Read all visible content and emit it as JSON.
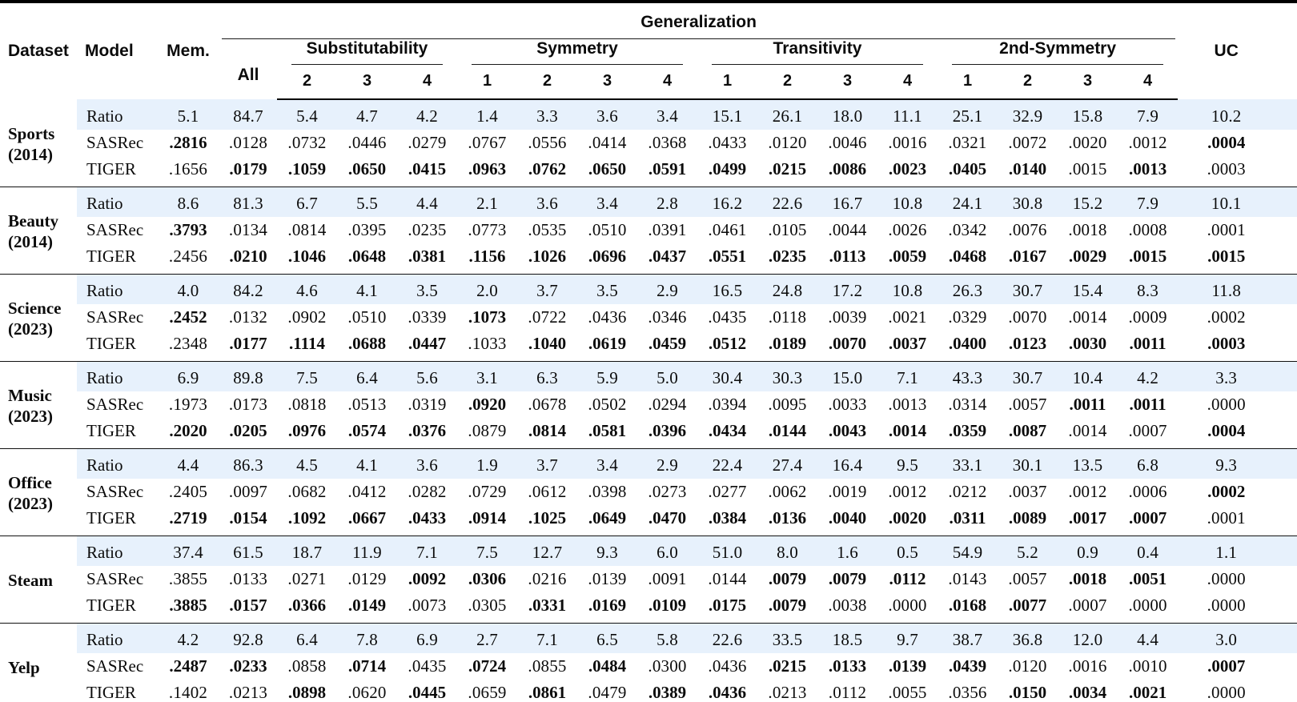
{
  "colors": {
    "highlight": "#e7f1fc",
    "rule": "#000000"
  },
  "header": {
    "dataset": "Dataset",
    "model": "Model",
    "mem": "Mem.",
    "generalization": "Generalization",
    "all": "All",
    "col_groups": [
      "Substitutability",
      "Symmetry",
      "Transitivity",
      "2nd-Symmetry"
    ],
    "subcols": [
      "2",
      "3",
      "4",
      "1",
      "2",
      "3",
      "4",
      "1",
      "2",
      "3",
      "4",
      "1",
      "2",
      "3",
      "4"
    ],
    "uc": "UC"
  },
  "groups": [
    {
      "dataset": [
        "Sports",
        "(2014)"
      ],
      "rows": [
        {
          "model": "Ratio",
          "highlight": true,
          "values": [
            "5.1",
            "84.7",
            "5.4",
            "4.7",
            "4.2",
            "1.4",
            "3.3",
            "3.6",
            "3.4",
            "15.1",
            "26.1",
            "18.0",
            "11.1",
            "25.1",
            "32.9",
            "15.8",
            "7.9",
            "10.2"
          ],
          "bold": [
            0,
            0,
            0,
            0,
            0,
            0,
            0,
            0,
            0,
            0,
            0,
            0,
            0,
            0,
            0,
            0,
            0,
            0
          ]
        },
        {
          "model": "SASRec",
          "highlight": false,
          "values": [
            ".2816",
            ".0128",
            ".0732",
            ".0446",
            ".0279",
            ".0767",
            ".0556",
            ".0414",
            ".0368",
            ".0433",
            ".0120",
            ".0046",
            ".0016",
            ".0321",
            ".0072",
            ".0020",
            ".0012",
            ".0004"
          ],
          "bold": [
            1,
            0,
            0,
            0,
            0,
            0,
            0,
            0,
            0,
            0,
            0,
            0,
            0,
            0,
            0,
            0,
            0,
            1
          ]
        },
        {
          "model": "TIGER",
          "highlight": false,
          "values": [
            ".1656",
            ".0179",
            ".1059",
            ".0650",
            ".0415",
            ".0963",
            ".0762",
            ".0650",
            ".0591",
            ".0499",
            ".0215",
            ".0086",
            ".0023",
            ".0405",
            ".0140",
            ".0015",
            ".0013",
            ".0003"
          ],
          "bold": [
            0,
            1,
            1,
            1,
            1,
            1,
            1,
            1,
            1,
            1,
            1,
            1,
            1,
            1,
            1,
            0,
            1,
            0
          ]
        }
      ]
    },
    {
      "dataset": [
        "Beauty",
        "(2014)"
      ],
      "rows": [
        {
          "model": "Ratio",
          "highlight": true,
          "values": [
            "8.6",
            "81.3",
            "6.7",
            "5.5",
            "4.4",
            "2.1",
            "3.6",
            "3.4",
            "2.8",
            "16.2",
            "22.6",
            "16.7",
            "10.8",
            "24.1",
            "30.8",
            "15.2",
            "7.9",
            "10.1"
          ],
          "bold": [
            0,
            0,
            0,
            0,
            0,
            0,
            0,
            0,
            0,
            0,
            0,
            0,
            0,
            0,
            0,
            0,
            0,
            0
          ]
        },
        {
          "model": "SASRec",
          "highlight": false,
          "values": [
            ".3793",
            ".0134",
            ".0814",
            ".0395",
            ".0235",
            ".0773",
            ".0535",
            ".0510",
            ".0391",
            ".0461",
            ".0105",
            ".0044",
            ".0026",
            ".0342",
            ".0076",
            ".0018",
            ".0008",
            ".0001"
          ],
          "bold": [
            1,
            0,
            0,
            0,
            0,
            0,
            0,
            0,
            0,
            0,
            0,
            0,
            0,
            0,
            0,
            0,
            0,
            0
          ]
        },
        {
          "model": "TIGER",
          "highlight": false,
          "values": [
            ".2456",
            ".0210",
            ".1046",
            ".0648",
            ".0381",
            ".1156",
            ".1026",
            ".0696",
            ".0437",
            ".0551",
            ".0235",
            ".0113",
            ".0059",
            ".0468",
            ".0167",
            ".0029",
            ".0015",
            ".0015"
          ],
          "bold": [
            0,
            1,
            1,
            1,
            1,
            1,
            1,
            1,
            1,
            1,
            1,
            1,
            1,
            1,
            1,
            1,
            1,
            1
          ]
        }
      ]
    },
    {
      "dataset": [
        "Science",
        "(2023)"
      ],
      "rows": [
        {
          "model": "Ratio",
          "highlight": true,
          "values": [
            "4.0",
            "84.2",
            "4.6",
            "4.1",
            "3.5",
            "2.0",
            "3.7",
            "3.5",
            "2.9",
            "16.5",
            "24.8",
            "17.2",
            "10.8",
            "26.3",
            "30.7",
            "15.4",
            "8.3",
            "11.8"
          ],
          "bold": [
            0,
            0,
            0,
            0,
            0,
            0,
            0,
            0,
            0,
            0,
            0,
            0,
            0,
            0,
            0,
            0,
            0,
            0
          ]
        },
        {
          "model": "SASRec",
          "highlight": false,
          "values": [
            ".2452",
            ".0132",
            ".0902",
            ".0510",
            ".0339",
            ".1073",
            ".0722",
            ".0436",
            ".0346",
            ".0435",
            ".0118",
            ".0039",
            ".0021",
            ".0329",
            ".0070",
            ".0014",
            ".0009",
            ".0002"
          ],
          "bold": [
            1,
            0,
            0,
            0,
            0,
            1,
            0,
            0,
            0,
            0,
            0,
            0,
            0,
            0,
            0,
            0,
            0,
            0
          ]
        },
        {
          "model": "TIGER",
          "highlight": false,
          "values": [
            ".2348",
            ".0177",
            ".1114",
            ".0688",
            ".0447",
            ".1033",
            ".1040",
            ".0619",
            ".0459",
            ".0512",
            ".0189",
            ".0070",
            ".0037",
            ".0400",
            ".0123",
            ".0030",
            ".0011",
            ".0003"
          ],
          "bold": [
            0,
            1,
            1,
            1,
            1,
            0,
            1,
            1,
            1,
            1,
            1,
            1,
            1,
            1,
            1,
            1,
            1,
            1
          ]
        }
      ]
    },
    {
      "dataset": [
        "Music",
        "(2023)"
      ],
      "rows": [
        {
          "model": "Ratio",
          "highlight": true,
          "values": [
            "6.9",
            "89.8",
            "7.5",
            "6.4",
            "5.6",
            "3.1",
            "6.3",
            "5.9",
            "5.0",
            "30.4",
            "30.3",
            "15.0",
            "7.1",
            "43.3",
            "30.7",
            "10.4",
            "4.2",
            "3.3"
          ],
          "bold": [
            0,
            0,
            0,
            0,
            0,
            0,
            0,
            0,
            0,
            0,
            0,
            0,
            0,
            0,
            0,
            0,
            0,
            0
          ]
        },
        {
          "model": "SASRec",
          "highlight": false,
          "values": [
            ".1973",
            ".0173",
            ".0818",
            ".0513",
            ".0319",
            ".0920",
            ".0678",
            ".0502",
            ".0294",
            ".0394",
            ".0095",
            ".0033",
            ".0013",
            ".0314",
            ".0057",
            ".0011",
            ".0011",
            ".0000"
          ],
          "bold": [
            0,
            0,
            0,
            0,
            0,
            1,
            0,
            0,
            0,
            0,
            0,
            0,
            0,
            0,
            0,
            1,
            1,
            0
          ]
        },
        {
          "model": "TIGER",
          "highlight": false,
          "values": [
            ".2020",
            ".0205",
            ".0976",
            ".0574",
            ".0376",
            ".0879",
            ".0814",
            ".0581",
            ".0396",
            ".0434",
            ".0144",
            ".0043",
            ".0014",
            ".0359",
            ".0087",
            ".0014",
            ".0007",
            ".0004"
          ],
          "bold": [
            1,
            1,
            1,
            1,
            1,
            0,
            1,
            1,
            1,
            1,
            1,
            1,
            1,
            1,
            1,
            0,
            0,
            1
          ]
        }
      ]
    },
    {
      "dataset": [
        "Office",
        "(2023)"
      ],
      "rows": [
        {
          "model": "Ratio",
          "highlight": true,
          "values": [
            "4.4",
            "86.3",
            "4.5",
            "4.1",
            "3.6",
            "1.9",
            "3.7",
            "3.4",
            "2.9",
            "22.4",
            "27.4",
            "16.4",
            "9.5",
            "33.1",
            "30.1",
            "13.5",
            "6.8",
            "9.3"
          ],
          "bold": [
            0,
            0,
            0,
            0,
            0,
            0,
            0,
            0,
            0,
            0,
            0,
            0,
            0,
            0,
            0,
            0,
            0,
            0
          ]
        },
        {
          "model": "SASRec",
          "highlight": false,
          "values": [
            ".2405",
            ".0097",
            ".0682",
            ".0412",
            ".0282",
            ".0729",
            ".0612",
            ".0398",
            ".0273",
            ".0277",
            ".0062",
            ".0019",
            ".0012",
            ".0212",
            ".0037",
            ".0012",
            ".0006",
            ".0002"
          ],
          "bold": [
            0,
            0,
            0,
            0,
            0,
            0,
            0,
            0,
            0,
            0,
            0,
            0,
            0,
            0,
            0,
            0,
            0,
            1
          ]
        },
        {
          "model": "TIGER",
          "highlight": false,
          "values": [
            ".2719",
            ".0154",
            ".1092",
            ".0667",
            ".0433",
            ".0914",
            ".1025",
            ".0649",
            ".0470",
            ".0384",
            ".0136",
            ".0040",
            ".0020",
            ".0311",
            ".0089",
            ".0017",
            ".0007",
            ".0001"
          ],
          "bold": [
            1,
            1,
            1,
            1,
            1,
            1,
            1,
            1,
            1,
            1,
            1,
            1,
            1,
            1,
            1,
            1,
            1,
            0
          ]
        }
      ]
    },
    {
      "dataset": [
        "Steam"
      ],
      "rows": [
        {
          "model": "Ratio",
          "highlight": true,
          "values": [
            "37.4",
            "61.5",
            "18.7",
            "11.9",
            "7.1",
            "7.5",
            "12.7",
            "9.3",
            "6.0",
            "51.0",
            "8.0",
            "1.6",
            "0.5",
            "54.9",
            "5.2",
            "0.9",
            "0.4",
            "1.1"
          ],
          "bold": [
            0,
            0,
            0,
            0,
            0,
            0,
            0,
            0,
            0,
            0,
            0,
            0,
            0,
            0,
            0,
            0,
            0,
            0
          ]
        },
        {
          "model": "SASRec",
          "highlight": false,
          "values": [
            ".3855",
            ".0133",
            ".0271",
            ".0129",
            ".0092",
            ".0306",
            ".0216",
            ".0139",
            ".0091",
            ".0144",
            ".0079",
            ".0079",
            ".0112",
            ".0143",
            ".0057",
            ".0018",
            ".0051",
            ".0000"
          ],
          "bold": [
            0,
            0,
            0,
            0,
            1,
            1,
            0,
            0,
            0,
            0,
            1,
            1,
            1,
            0,
            0,
            1,
            1,
            0
          ]
        },
        {
          "model": "TIGER",
          "highlight": false,
          "values": [
            ".3885",
            ".0157",
            ".0366",
            ".0149",
            ".0073",
            ".0305",
            ".0331",
            ".0169",
            ".0109",
            ".0175",
            ".0079",
            ".0038",
            ".0000",
            ".0168",
            ".0077",
            ".0007",
            ".0000",
            ".0000"
          ],
          "bold": [
            1,
            1,
            1,
            1,
            0,
            0,
            1,
            1,
            1,
            1,
            1,
            0,
            0,
            1,
            1,
            0,
            0,
            0
          ]
        }
      ]
    },
    {
      "dataset": [
        "Yelp"
      ],
      "rows": [
        {
          "model": "Ratio",
          "highlight": true,
          "values": [
            "4.2",
            "92.8",
            "6.4",
            "7.8",
            "6.9",
            "2.7",
            "7.1",
            "6.5",
            "5.8",
            "22.6",
            "33.5",
            "18.5",
            "9.7",
            "38.7",
            "36.8",
            "12.0",
            "4.4",
            "3.0"
          ],
          "bold": [
            0,
            0,
            0,
            0,
            0,
            0,
            0,
            0,
            0,
            0,
            0,
            0,
            0,
            0,
            0,
            0,
            0,
            0
          ]
        },
        {
          "model": "SASRec",
          "highlight": false,
          "values": [
            ".2487",
            ".0233",
            ".0858",
            ".0714",
            ".0435",
            ".0724",
            ".0855",
            ".0484",
            ".0300",
            ".0436",
            ".0215",
            ".0133",
            ".0139",
            ".0439",
            ".0120",
            ".0016",
            ".0010",
            ".0007"
          ],
          "bold": [
            1,
            1,
            0,
            1,
            0,
            1,
            0,
            1,
            0,
            0,
            1,
            1,
            1,
            1,
            0,
            0,
            0,
            1
          ]
        },
        {
          "model": "TIGER",
          "highlight": false,
          "values": [
            ".1402",
            ".0213",
            ".0898",
            ".0620",
            ".0445",
            ".0659",
            ".0861",
            ".0479",
            ".0389",
            ".0436",
            ".0213",
            ".0112",
            ".0055",
            ".0356",
            ".0150",
            ".0034",
            ".0021",
            ".0000"
          ],
          "bold": [
            0,
            0,
            1,
            0,
            1,
            0,
            1,
            0,
            1,
            1,
            0,
            0,
            0,
            0,
            1,
            1,
            1,
            0
          ]
        }
      ]
    }
  ]
}
